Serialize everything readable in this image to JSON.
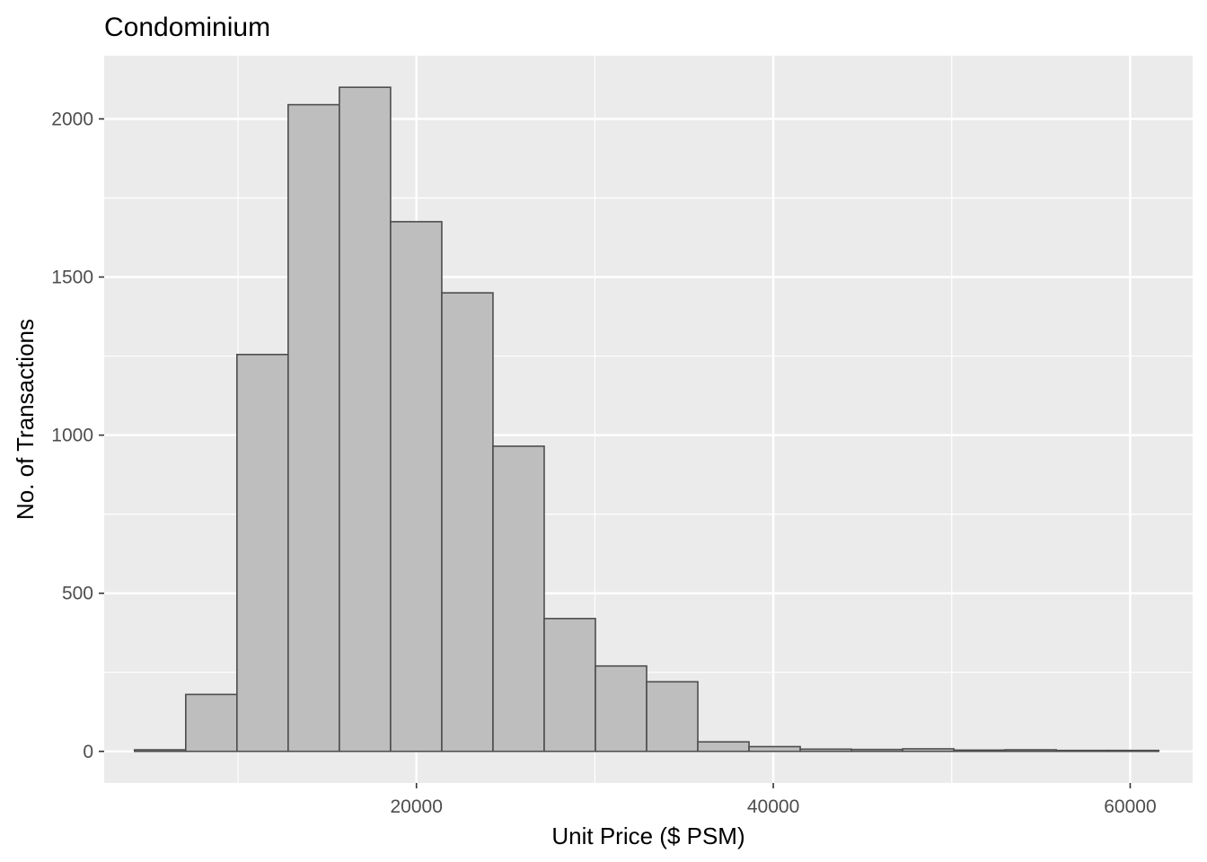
{
  "chart_data": {
    "type": "bar",
    "title": "Condominium",
    "xlabel": "Unit Price ($ PSM)",
    "ylabel": "No. of Transactions",
    "xlim": [
      2500,
      63500
    ],
    "ylim": [
      -100,
      2200
    ],
    "x_ticks": [
      20000,
      40000,
      60000
    ],
    "x_tick_labels": [
      "20000",
      "40000",
      "60000"
    ],
    "y_ticks": [
      0,
      500,
      1000,
      1500,
      2000
    ],
    "y_tick_labels": [
      "0",
      "500",
      "1000",
      "1500",
      "2000"
    ],
    "grid": true,
    "bin_edges": [
      4200,
      7070,
      9940,
      12810,
      15680,
      18550,
      21420,
      24290,
      27160,
      30030,
      32900,
      35770,
      38640,
      41510,
      44380,
      47250,
      50120,
      52990,
      55860,
      58730,
      61600
    ],
    "values": [
      5,
      180,
      1255,
      2045,
      2100,
      1675,
      1450,
      965,
      420,
      270,
      220,
      30,
      15,
      7,
      6,
      8,
      4,
      5,
      3,
      3
    ],
    "colors": {
      "panel": "#ebebeb",
      "grid": "#ffffff",
      "bar_fill": "#bebebe",
      "bar_stroke": "#4d4d4d",
      "tick": "#333333"
    }
  }
}
